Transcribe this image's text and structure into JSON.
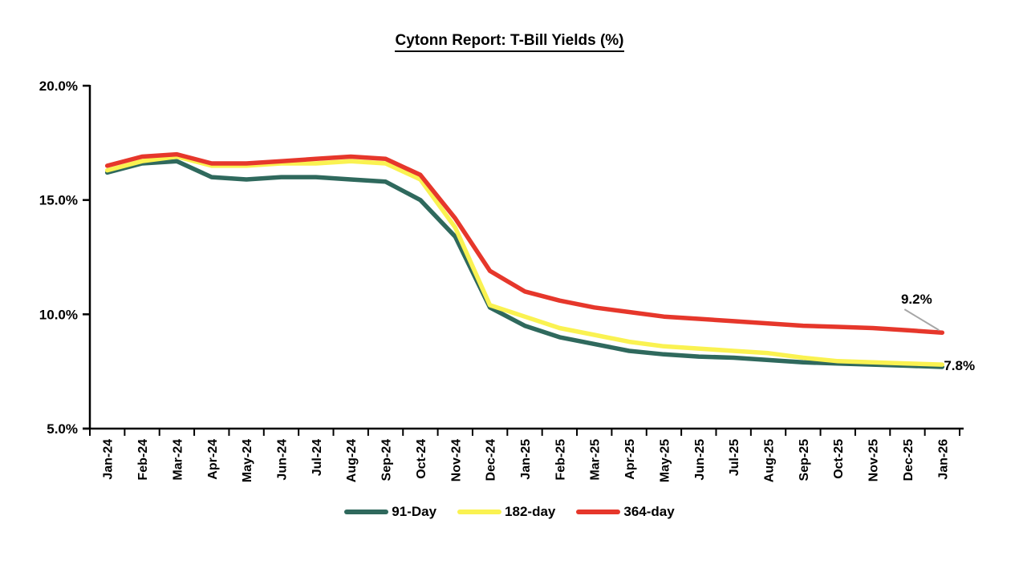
{
  "title": "Cytonn Report: T-Bill Yields (%)",
  "colors": {
    "axis": "#000000",
    "leader_line": "#A6A6A6",
    "background": "#FFFFFF",
    "text": "#000000"
  },
  "chart_data": {
    "type": "line",
    "title": "Cytonn Report: T-Bill Yields (%)",
    "xlabel": "",
    "ylabel": "",
    "ylim": [
      5,
      20
    ],
    "y_tick_step": 5,
    "y_tick_labels": [
      "5.0%",
      "10.0%",
      "15.0%",
      "20.0%"
    ],
    "grid": false,
    "legend_position": "bottom",
    "categories": [
      "Jan-24",
      "Feb-24",
      "Mar-24",
      "Apr-24",
      "May-24",
      "Jun-24",
      "Jul-24",
      "Aug-24",
      "Sep-24",
      "Oct-24",
      "Nov-24",
      "Dec-24",
      "Jan-25",
      "Feb-25",
      "Mar-25",
      "Apr-25",
      "May-25",
      "Jun-25",
      "Jul-25",
      "Aug-25",
      "Sep-25",
      "Oct-25",
      "Nov-25",
      "Dec-25",
      "Jan-26"
    ],
    "series": [
      {
        "name": "91-Day",
        "color": "#2F695D",
        "values": [
          16.2,
          16.6,
          16.7,
          16.0,
          15.9,
          16.0,
          16.0,
          15.9,
          15.8,
          15.0,
          13.4,
          10.3,
          9.5,
          9.0,
          8.7,
          8.4,
          8.25,
          8.15,
          8.1,
          8.0,
          7.9,
          7.85,
          7.8,
          7.75,
          7.7
        ]
      },
      {
        "name": "182-day",
        "color": "#FAF251",
        "values": [
          16.3,
          16.7,
          16.9,
          16.5,
          16.5,
          16.6,
          16.6,
          16.7,
          16.6,
          15.9,
          13.8,
          10.4,
          9.9,
          9.4,
          9.1,
          8.8,
          8.6,
          8.5,
          8.4,
          8.3,
          8.1,
          7.95,
          7.9,
          7.85,
          7.8
        ]
      },
      {
        "name": "364-day",
        "color": "#E6372B",
        "values": [
          16.5,
          16.9,
          17.0,
          16.6,
          16.6,
          16.7,
          16.8,
          16.9,
          16.8,
          16.1,
          14.2,
          11.9,
          11.0,
          10.6,
          10.3,
          10.1,
          9.9,
          9.8,
          9.7,
          9.6,
          9.5,
          9.45,
          9.4,
          9.3,
          9.2
        ]
      }
    ],
    "annotations": [
      {
        "text": "9.2%",
        "series_index": 2,
        "point_index": 24,
        "value": 9.2,
        "leader": true
      },
      {
        "text": "7.8%",
        "series_index": 1,
        "point_index": 24,
        "value": 7.8,
        "leader": false
      }
    ]
  }
}
